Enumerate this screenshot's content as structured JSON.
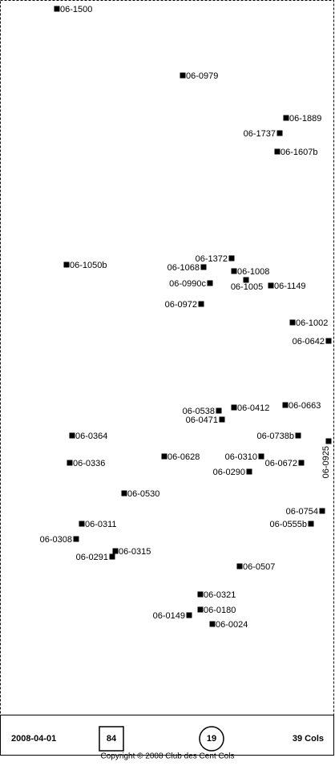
{
  "points": [
    {
      "label": "06-1500"
    },
    {
      "label": "06-0979"
    },
    {
      "label": "06-1889"
    },
    {
      "label": "06-1737"
    },
    {
      "label": "06-1607b"
    },
    {
      "label": "06-1372"
    },
    {
      "label": "06-1050b"
    },
    {
      "label": "06-1068"
    },
    {
      "label": "06-1008"
    },
    {
      "label": "06-0990c"
    },
    {
      "label": "06-1005"
    },
    {
      "label": "06-1149"
    },
    {
      "label": "06-0972"
    },
    {
      "label": "06-1002"
    },
    {
      "label": "06-0642"
    },
    {
      "label": "06-0538"
    },
    {
      "label": "06-0412"
    },
    {
      "label": "06-0663"
    },
    {
      "label": "06-0471"
    },
    {
      "label": "06-0364"
    },
    {
      "label": "06-0738b"
    },
    {
      "label": "06-0925"
    },
    {
      "label": "06-0628"
    },
    {
      "label": "06-0310"
    },
    {
      "label": "06-0336"
    },
    {
      "label": "06-0672"
    },
    {
      "label": "06-0290"
    },
    {
      "label": "06-0530"
    },
    {
      "label": "06-0754"
    },
    {
      "label": "06-0311"
    },
    {
      "label": "06-0555b"
    },
    {
      "label": "06-0308"
    },
    {
      "label": "06-0315"
    },
    {
      "label": "06-0291"
    },
    {
      "label": "06-0507"
    },
    {
      "label": "06-0321"
    },
    {
      "label": "06-0180"
    },
    {
      "label": "06-0149"
    },
    {
      "label": "06-0024"
    }
  ],
  "footer": {
    "date": "2008-04-01",
    "box_count": "84",
    "circle_count": "19",
    "total": "39 Cols",
    "copyright": "Copyright © 2008 Club des Cent Cols"
  }
}
